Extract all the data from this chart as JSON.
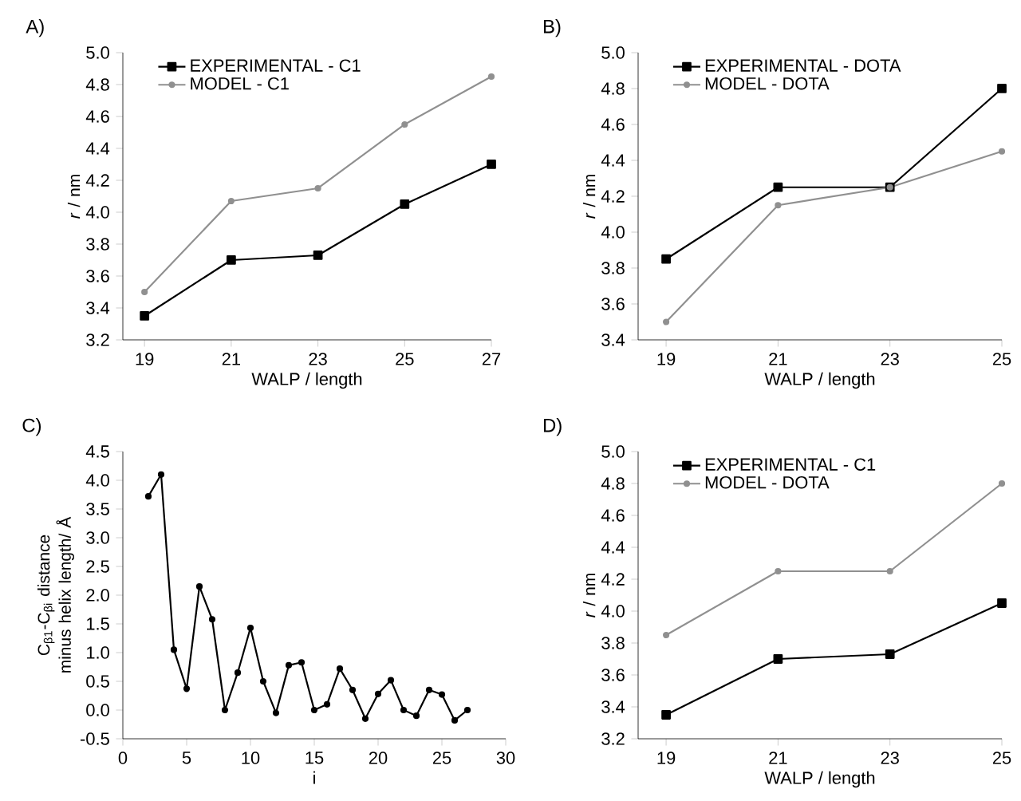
{
  "chart_data": [
    {
      "type": "line",
      "title": "A)",
      "xlabel": "WALP / length",
      "ylabel": "*r* / nm",
      "x": [
        19,
        21,
        23,
        25,
        27
      ],
      "xlim": [
        18.5,
        27
      ],
      "xticks": [
        19,
        21,
        23,
        25,
        27
      ],
      "ylim": [
        3.2,
        5.0
      ],
      "yticks": [
        3.2,
        3.4,
        3.6,
        3.8,
        {
          "value": 4,
          "label": "4.0"
        },
        4.2,
        4.4,
        4.6,
        4.8,
        {
          "value": 5,
          "label": "5.0"
        }
      ],
      "legend": "top left",
      "series": [
        {
          "name": "EXPERIMENTAL - C1",
          "color": "#000000",
          "marker": "square",
          "values": [
            3.35,
            3.7,
            3.73,
            4.05,
            4.3
          ]
        },
        {
          "name": "MODEL - C1",
          "color": "#909090",
          "marker": "circle",
          "values": [
            3.5,
            4.07,
            4.15,
            4.55,
            4.85
          ]
        }
      ]
    },
    {
      "type": "line",
      "title": "B)",
      "xlabel": "WALP / length",
      "ylabel": "*r* / nm",
      "x": [
        19,
        21,
        23,
        25
      ],
      "xlim": [
        18.5,
        25
      ],
      "xticks": [
        19,
        21,
        23,
        25
      ],
      "ylim": [
        3.4,
        5.0
      ],
      "yticks": [
        3.4,
        3.6,
        3.8,
        {
          "value": 4,
          "label": "4.0"
        },
        4.2,
        4.4,
        4.6,
        4.8,
        {
          "value": 5,
          "label": "5.0"
        }
      ],
      "legend": "top left",
      "series": [
        {
          "name": "EXPERIMENTAL - DOTA",
          "color": "#000000",
          "marker": "square",
          "values": [
            3.85,
            4.25,
            4.25,
            4.8
          ]
        },
        {
          "name": "MODEL - DOTA",
          "color": "#909090",
          "marker": "circle",
          "values": [
            3.5,
            4.15,
            4.25,
            4.45
          ]
        }
      ]
    },
    {
      "type": "line",
      "title": "C)",
      "xlabel": "i",
      "ylabel": "C$_{β1}$-C$_{βi}$ distance minus helix length/ Å",
      "x": [
        2,
        3,
        4,
        5,
        6,
        7,
        8,
        9,
        10,
        11,
        12,
        13,
        14,
        15,
        16,
        17,
        18,
        19,
        20,
        21,
        22,
        23,
        24,
        25,
        26,
        27
      ],
      "xlim": [
        0,
        30
      ],
      "xticks": [
        0,
        5,
        10,
        15,
        20,
        25,
        30
      ],
      "ylim": [
        -0.5,
        4.5
      ],
      "yticks": [
        -0.5,
        {
          "value": 0,
          "label": "0.0"
        },
        0.5,
        {
          "value": 1,
          "label": "1.0"
        },
        1.5,
        {
          "value": 2,
          "label": "2.0"
        },
        2.5,
        {
          "value": 3,
          "label": "3.0"
        },
        3.5,
        {
          "value": 4,
          "label": "4.0"
        },
        4.5
      ],
      "series": [
        {
          "color": "#000000",
          "marker": "circle",
          "values": [
            3.72,
            4.1,
            1.05,
            0.37,
            2.15,
            1.58,
            0.0,
            0.65,
            1.43,
            0.5,
            -0.05,
            0.78,
            0.83,
            0.0,
            0.1,
            0.72,
            0.35,
            -0.15,
            0.28,
            0.52,
            0.0,
            -0.1,
            0.35,
            0.27,
            -0.18,
            0.0
          ]
        }
      ]
    },
    {
      "type": "line",
      "title": "D)",
      "xlabel": "WALP / length",
      "ylabel": "*r* / nm",
      "x": [
        19,
        21,
        23,
        25
      ],
      "xlim": [
        18.5,
        25
      ],
      "xticks": [
        19,
        21,
        23,
        25
      ],
      "ylim": [
        3.2,
        5.0
      ],
      "yticks": [
        3.2,
        3.4,
        3.6,
        3.8,
        {
          "value": 4,
          "label": "4.0"
        },
        4.2,
        4.4,
        4.6,
        4.8,
        {
          "value": 5,
          "label": "5.0"
        }
      ],
      "legend": "top left",
      "series": [
        {
          "name": "EXPERIMENTAL - C1",
          "color": "#000000",
          "marker": "square",
          "values": [
            3.35,
            3.7,
            3.73,
            4.05
          ]
        },
        {
          "name": "MODEL - DOTA",
          "color": "#909090",
          "marker": "circle",
          "values": [
            3.85,
            4.25,
            4.25,
            4.8
          ]
        }
      ]
    }
  ]
}
